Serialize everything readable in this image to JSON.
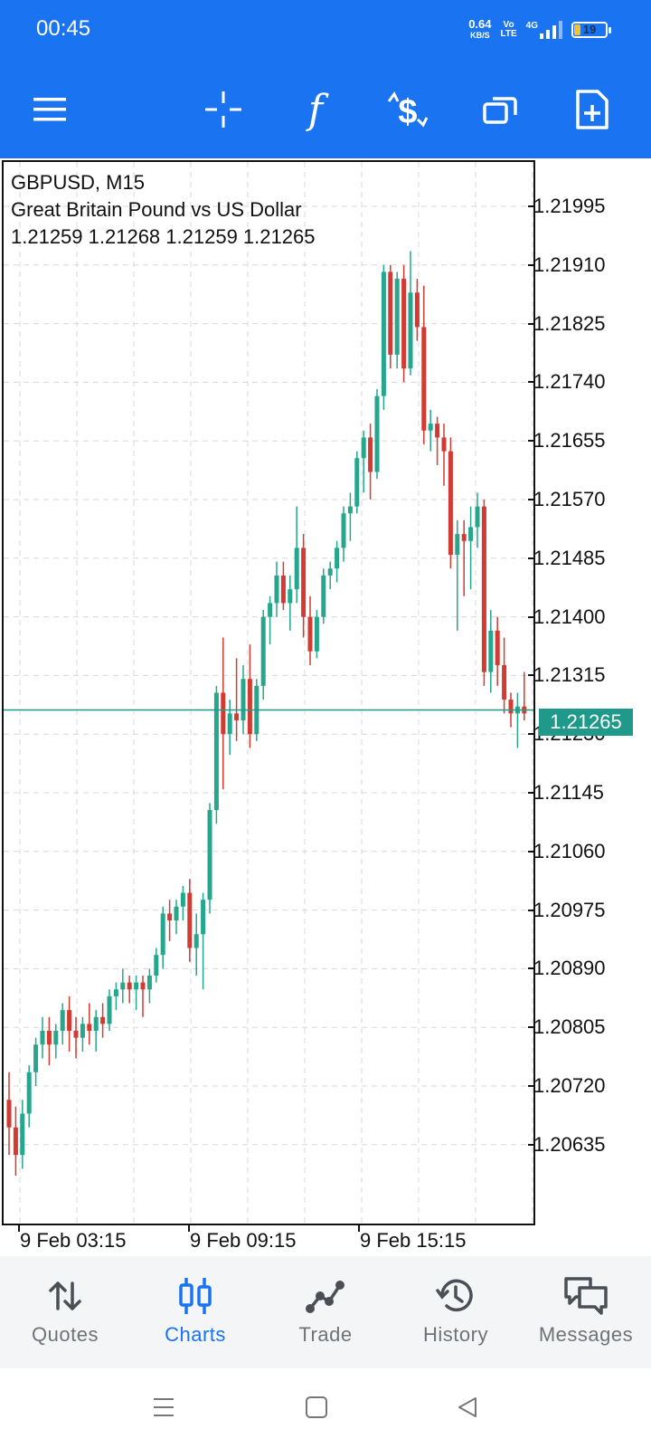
{
  "status_bar": {
    "time": "00:45",
    "net_speed": "0.64",
    "net_unit": "KB/S",
    "volte_top": "Vo",
    "volte_bottom": "LTE",
    "network": "4G",
    "battery": "19"
  },
  "toolbar": {
    "icons": [
      "menu-icon",
      "crosshair-icon",
      "indicators-icon",
      "new-order-icon",
      "windows-icon",
      "add-object-icon"
    ]
  },
  "chart": {
    "symbol_line": "GBPUSD, M15",
    "description": "Great Britain Pound vs US Dollar",
    "ohlc_line": "1.21259 1.21268 1.21259 1.21265",
    "current_price": "1.21265",
    "y_ticks": [
      "1.21995",
      "1.21910",
      "1.21825",
      "1.21740",
      "1.21655",
      "1.21570",
      "1.21485",
      "1.21400",
      "1.21315",
      "1.21230",
      "1.21145",
      "1.21060",
      "1.20975",
      "1.20890",
      "1.20805",
      "1.20720",
      "1.20635"
    ],
    "x_ticks": [
      "9 Feb 03:15",
      "9 Feb 09:15",
      "9 Feb 15:15"
    ],
    "colors": {
      "bull": "#26a68d",
      "bear": "#d23a32",
      "price_line": "#1f9a8a",
      "grid": "#d8d8d8"
    }
  },
  "chart_data": {
    "type": "candlestick",
    "symbol": "GBPUSD",
    "timeframe": "M15",
    "ylim": [
      1.2057,
      1.2204
    ],
    "x_ticks": [
      "9 Feb 03:15",
      "9 Feb 09:15",
      "9 Feb 15:15"
    ],
    "current_price": 1.21265,
    "ohlc": [
      [
        1.207,
        1.2074,
        1.2062,
        1.2066
      ],
      [
        1.2066,
        1.2069,
        1.2059,
        1.2062
      ],
      [
        1.2062,
        1.207,
        1.206,
        1.2068
      ],
      [
        1.2068,
        1.2075,
        1.2066,
        1.2074
      ],
      [
        1.2074,
        1.2079,
        1.2072,
        1.2078
      ],
      [
        1.2078,
        1.2082,
        1.2076,
        1.208
      ],
      [
        1.208,
        1.2082,
        1.2075,
        1.2078
      ],
      [
        1.2078,
        1.2081,
        1.2076,
        1.208
      ],
      [
        1.208,
        1.2084,
        1.2078,
        1.2083
      ],
      [
        1.2083,
        1.2085,
        1.2077,
        1.208
      ],
      [
        1.208,
        1.2082,
        1.2076,
        1.2079
      ],
      [
        1.2079,
        1.2082,
        1.2077,
        1.2081
      ],
      [
        1.2081,
        1.2084,
        1.2078,
        1.208
      ],
      [
        1.208,
        1.2083,
        1.2077,
        1.2082
      ],
      [
        1.2082,
        1.2084,
        1.2079,
        1.2081
      ],
      [
        1.2081,
        1.2086,
        1.208,
        1.2085
      ],
      [
        1.2085,
        1.2087,
        1.2083,
        1.2086
      ],
      [
        1.2086,
        1.2089,
        1.2084,
        1.2087
      ],
      [
        1.2087,
        1.2088,
        1.2084,
        1.2086
      ],
      [
        1.2086,
        1.2088,
        1.2083,
        1.2087
      ],
      [
        1.2087,
        1.2088,
        1.2082,
        1.2086
      ],
      [
        1.2086,
        1.2089,
        1.2084,
        1.2088
      ],
      [
        1.2088,
        1.2092,
        1.2087,
        1.2091
      ],
      [
        1.2091,
        1.2098,
        1.2089,
        1.2097
      ],
      [
        1.2097,
        1.2099,
        1.2093,
        1.2096
      ],
      [
        1.2096,
        1.2099,
        1.2094,
        1.2098
      ],
      [
        1.2098,
        1.2101,
        1.2096,
        1.21
      ],
      [
        1.21,
        1.2102,
        1.209,
        1.2092
      ],
      [
        1.2092,
        1.2097,
        1.2088,
        1.2094
      ],
      [
        1.2094,
        1.21,
        1.2086,
        1.2099
      ],
      [
        1.2099,
        1.2113,
        1.2097,
        1.2112
      ],
      [
        1.2112,
        1.213,
        1.211,
        1.2129
      ],
      [
        1.2129,
        1.2137,
        1.2115,
        1.2123
      ],
      [
        1.2123,
        1.2128,
        1.212,
        1.2126
      ],
      [
        1.2126,
        1.2134,
        1.2122,
        1.2125
      ],
      [
        1.2125,
        1.2133,
        1.2123,
        1.2131
      ],
      [
        1.2131,
        1.2136,
        1.2121,
        1.2123
      ],
      [
        1.2123,
        1.2131,
        1.2122,
        1.213
      ],
      [
        1.213,
        1.2141,
        1.2128,
        1.214
      ],
      [
        1.214,
        1.2143,
        1.2136,
        1.2142
      ],
      [
        1.2142,
        1.2148,
        1.214,
        1.2146
      ],
      [
        1.2146,
        1.2148,
        1.2141,
        1.2142
      ],
      [
        1.2142,
        1.2146,
        1.2138,
        1.2144
      ],
      [
        1.2144,
        1.2156,
        1.2142,
        1.215
      ],
      [
        1.215,
        1.2152,
        1.2137,
        1.214
      ],
      [
        1.214,
        1.2143,
        1.2133,
        1.2135
      ],
      [
        1.2135,
        1.2141,
        1.2134,
        1.214
      ],
      [
        1.214,
        1.2147,
        1.2139,
        1.2146
      ],
      [
        1.2146,
        1.2148,
        1.2144,
        1.2147
      ],
      [
        1.2147,
        1.2151,
        1.2145,
        1.215
      ],
      [
        1.215,
        1.2156,
        1.2148,
        1.2155
      ],
      [
        1.2155,
        1.2158,
        1.2151,
        1.2156
      ],
      [
        1.2156,
        1.2164,
        1.2155,
        1.2163
      ],
      [
        1.2163,
        1.2167,
        1.2158,
        1.2166
      ],
      [
        1.2166,
        1.2168,
        1.2157,
        1.2161
      ],
      [
        1.2161,
        1.2173,
        1.216,
        1.2172
      ],
      [
        1.2172,
        1.2191,
        1.217,
        1.219
      ],
      [
        1.219,
        1.2191,
        1.2176,
        1.2178
      ],
      [
        1.2178,
        1.219,
        1.2176,
        1.2189
      ],
      [
        1.2189,
        1.2191,
        1.2174,
        1.2176
      ],
      [
        1.2176,
        1.2193,
        1.2175,
        1.2187
      ],
      [
        1.2187,
        1.2189,
        1.218,
        1.2182
      ],
      [
        1.2182,
        1.2188,
        1.2165,
        1.2167
      ],
      [
        1.2167,
        1.217,
        1.2164,
        1.2168
      ],
      [
        1.2168,
        1.2169,
        1.2162,
        1.2166
      ],
      [
        1.2166,
        1.2168,
        1.2159,
        1.2164
      ],
      [
        1.2164,
        1.2166,
        1.2147,
        1.2149
      ],
      [
        1.2149,
        1.2154,
        1.2138,
        1.2152
      ],
      [
        1.2152,
        1.2154,
        1.2143,
        1.2151
      ],
      [
        1.2151,
        1.2156,
        1.2144,
        1.2153
      ],
      [
        1.2153,
        1.2158,
        1.215,
        1.2156
      ],
      [
        1.2156,
        1.2157,
        1.213,
        1.2132
      ],
      [
        1.2132,
        1.2141,
        1.2129,
        1.2138
      ],
      [
        1.2138,
        1.214,
        1.213,
        1.2133
      ],
      [
        1.2133,
        1.2137,
        1.2126,
        1.2128
      ],
      [
        1.2128,
        1.2129,
        1.2124,
        1.2126
      ],
      [
        1.2126,
        1.2129,
        1.2121,
        1.2127
      ],
      [
        1.2127,
        1.2132,
        1.2125,
        1.2126
      ]
    ]
  },
  "bottom_nav": [
    {
      "label": "Quotes",
      "icon": "quotes-icon"
    },
    {
      "label": "Charts",
      "icon": "charts-icon",
      "active": true
    },
    {
      "label": "Trade",
      "icon": "trade-icon"
    },
    {
      "label": "History",
      "icon": "history-icon"
    },
    {
      "label": "Messages",
      "icon": "messages-icon"
    }
  ],
  "system_nav": {
    "icons": [
      "recents-icon",
      "home-icon",
      "back-icon"
    ]
  }
}
